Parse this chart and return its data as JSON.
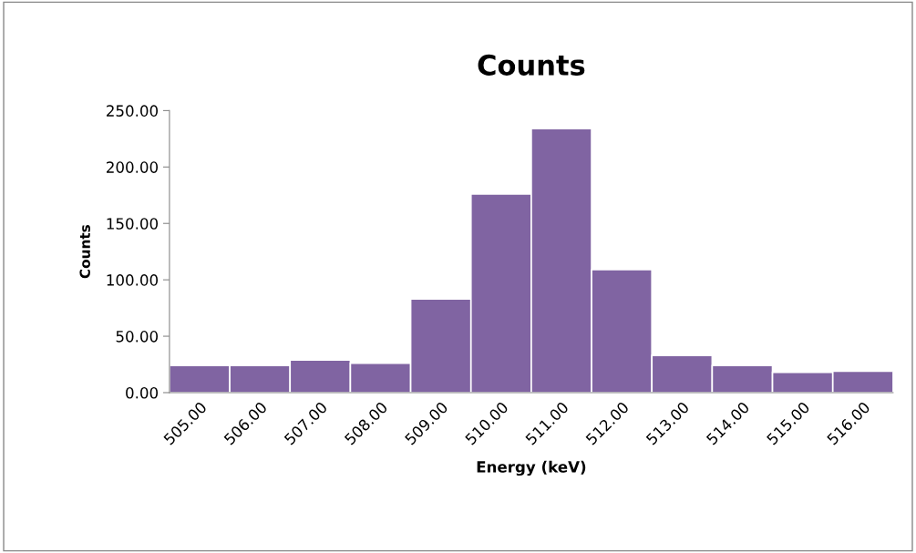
{
  "chart_data": {
    "type": "bar",
    "title": "Counts",
    "xlabel": "Energy (keV)",
    "ylabel": "Counts",
    "categories": [
      "505.00",
      "506.00",
      "507.00",
      "508.00",
      "509.00",
      "510.00",
      "511.00",
      "512.00",
      "513.00",
      "514.00",
      "515.00",
      "516.00"
    ],
    "values": [
      24,
      24,
      29,
      26,
      83,
      176,
      234,
      109,
      33,
      24,
      18,
      19
    ],
    "color": "#8064a2",
    "ylim": [
      0,
      250
    ],
    "yticks": [
      {
        "value": 0,
        "label": "0.00"
      },
      {
        "value": 50,
        "label": "50.00"
      },
      {
        "value": 100,
        "label": "100.00"
      },
      {
        "value": 150,
        "label": "150.00"
      },
      {
        "value": 200,
        "label": "200.00"
      },
      {
        "value": 250,
        "label": "250.00"
      }
    ],
    "grid": false,
    "legend": false
  }
}
